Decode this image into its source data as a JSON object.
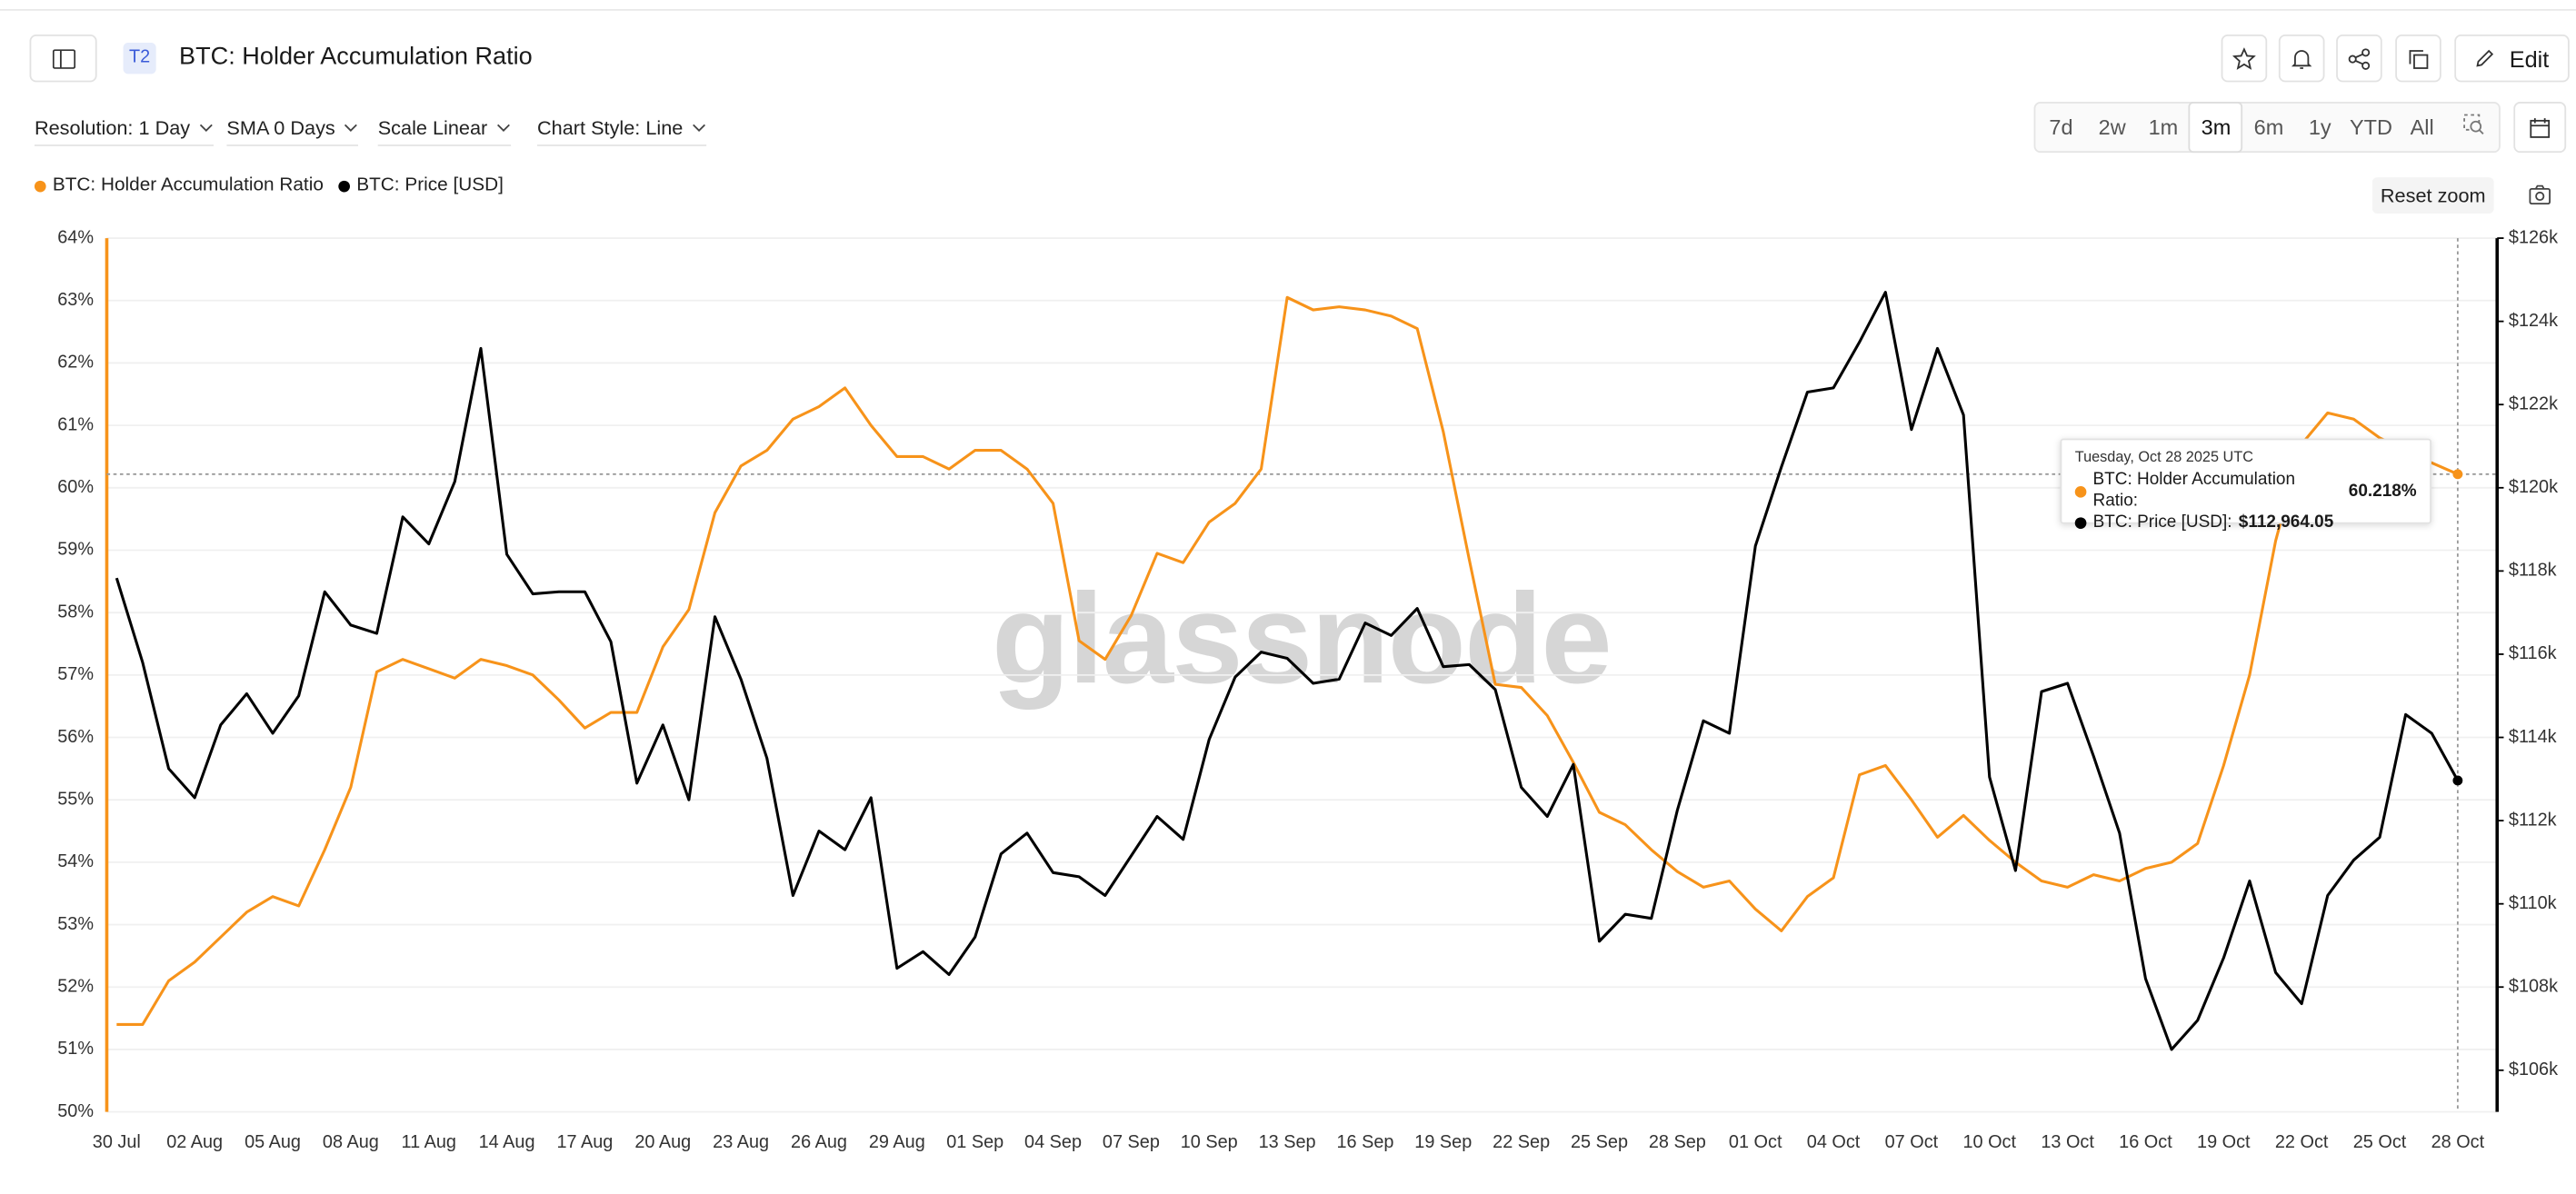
{
  "header": {
    "badge": "T2",
    "title": "BTC: Holder Accumulation Ratio",
    "edit": "Edit"
  },
  "toolbar": {
    "options": [
      "Resolution: 1 Day",
      "SMA 0 Days",
      "Scale Linear",
      "Chart Style: Line"
    ],
    "ranges": [
      "7d",
      "2w",
      "1m",
      "3m",
      "6m",
      "1y",
      "YTD",
      "All"
    ],
    "active_range": "3m",
    "reset_zoom": "Reset zoom"
  },
  "chart_data": {
    "type": "line",
    "watermark": "glassnode",
    "grid": true,
    "categories": [
      "30 Jul",
      null,
      null,
      "02 Aug",
      null,
      null,
      "05 Aug",
      null,
      null,
      "08 Aug",
      null,
      null,
      "11 Aug",
      null,
      null,
      "14 Aug",
      null,
      null,
      "17 Aug",
      null,
      null,
      "20 Aug",
      null,
      null,
      "23 Aug",
      null,
      null,
      "26 Aug",
      null,
      null,
      "29 Aug",
      null,
      null,
      "01 Sep",
      null,
      null,
      "04 Sep",
      null,
      null,
      "07 Sep",
      null,
      null,
      "10 Sep",
      null,
      null,
      "13 Sep",
      null,
      null,
      "16 Sep",
      null,
      null,
      "19 Sep",
      null,
      null,
      "22 Sep",
      null,
      null,
      "25 Sep",
      null,
      null,
      "28 Sep",
      null,
      null,
      "01 Oct",
      null,
      null,
      "04 Oct",
      null,
      null,
      "07 Oct",
      null,
      null,
      "10 Oct",
      null,
      null,
      "13 Oct",
      null,
      null,
      "16 Oct",
      null,
      null,
      "19 Oct",
      null,
      null,
      "22 Oct",
      null,
      null,
      "25 Oct",
      null,
      null,
      "28 Oct"
    ],
    "series": [
      {
        "name": "BTC: Holder Accumulation Ratio",
        "color": "#f7931a",
        "axis": "y",
        "values": [
          51.4,
          51.4,
          52.1,
          52.4,
          52.8,
          53.2,
          53.45,
          53.3,
          54.2,
          55.2,
          57.05,
          57.25,
          57.1,
          56.95,
          57.25,
          57.15,
          57.0,
          56.6,
          56.15,
          56.4,
          56.4,
          57.45,
          58.05,
          59.6,
          60.35,
          60.6,
          61.1,
          61.3,
          61.6,
          61.0,
          60.5,
          60.5,
          60.3,
          60.6,
          60.6,
          60.3,
          59.75,
          57.55,
          57.25,
          57.95,
          58.95,
          58.8,
          59.45,
          59.75,
          60.3,
          63.05,
          62.85,
          62.9,
          62.85,
          62.75,
          62.55,
          60.9,
          58.85,
          56.85,
          56.8,
          56.35,
          55.6,
          54.8,
          54.6,
          54.2,
          53.85,
          53.6,
          53.7,
          53.25,
          52.9,
          53.45,
          53.75,
          55.4,
          55.55,
          55.0,
          54.4,
          54.75,
          54.35,
          54.0,
          53.7,
          53.6,
          53.8,
          53.7,
          53.9,
          54.0,
          54.3,
          55.55,
          57.0,
          59.15,
          60.7,
          61.2,
          61.1,
          60.8,
          60.6,
          60.4,
          60.218
        ]
      },
      {
        "name": "BTC: Price [USD]",
        "color": "#000000",
        "axis": "y2",
        "values": [
          117830,
          115800,
          113250,
          112550,
          114300,
          115050,
          114100,
          115000,
          117500,
          116700,
          116500,
          119300,
          118650,
          120150,
          123350,
          118400,
          117450,
          117500,
          117500,
          116300,
          112900,
          114300,
          112500,
          116900,
          115400,
          113500,
          110200,
          111750,
          111300,
          112550,
          108450,
          108850,
          108300,
          109200,
          111200,
          111700,
          110750,
          110650,
          110200,
          111150,
          112100,
          111550,
          113950,
          115450,
          116050,
          115900,
          115300,
          115400,
          116750,
          116450,
          117100,
          115700,
          115750,
          115150,
          112800,
          112100,
          113350,
          109100,
          109750,
          109650,
          112250,
          114400,
          114100,
          118600,
          120500,
          122300,
          122400,
          123500,
          124700,
          121400,
          123350,
          121750,
          113050,
          110800,
          115100,
          115300,
          113550,
          111700,
          108200,
          106500,
          107200,
          108700,
          110550,
          108350,
          107600,
          110200,
          111050,
          111600,
          114550,
          114100,
          112964.05
        ]
      }
    ],
    "ylim": [
      50,
      64
    ],
    "yticks": [
      {
        "value": 50,
        "label": "50%"
      },
      {
        "value": 51,
        "label": "51%"
      },
      {
        "value": 52,
        "label": "52%"
      },
      {
        "value": 53,
        "label": "53%"
      },
      {
        "value": 54,
        "label": "54%"
      },
      {
        "value": 55,
        "label": "55%"
      },
      {
        "value": 56,
        "label": "56%"
      },
      {
        "value": 57,
        "label": "57%"
      },
      {
        "value": 58,
        "label": "58%"
      },
      {
        "value": 59,
        "label": "59%"
      },
      {
        "value": 60,
        "label": "60%"
      },
      {
        "value": 61,
        "label": "61%"
      },
      {
        "value": 62,
        "label": "62%"
      },
      {
        "value": 63,
        "label": "63%"
      },
      {
        "value": 64,
        "label": "64%"
      }
    ],
    "y2lim": [
      105000,
      126000
    ],
    "y2ticks": [
      {
        "value": 106000,
        "label": "$106k"
      },
      {
        "value": 108000,
        "label": "$108k"
      },
      {
        "value": 110000,
        "label": "$110k"
      },
      {
        "value": 112000,
        "label": "$112k"
      },
      {
        "value": 114000,
        "label": "$114k"
      },
      {
        "value": 116000,
        "label": "$116k"
      },
      {
        "value": 118000,
        "label": "$118k"
      },
      {
        "value": 120000,
        "label": "$120k"
      },
      {
        "value": 122000,
        "label": "$122k"
      },
      {
        "value": 124000,
        "label": "$124k"
      },
      {
        "value": 126000,
        "label": "$126k"
      }
    ],
    "tooltip": {
      "title": "Tuesday, Oct 28 2025 UTC",
      "rows": [
        {
          "label": "BTC: Holder Accumulation Ratio:",
          "value_label": "60.218%"
        },
        {
          "label": "BTC: Price [USD]:",
          "value_label": "$112,964.05"
        }
      ]
    }
  }
}
